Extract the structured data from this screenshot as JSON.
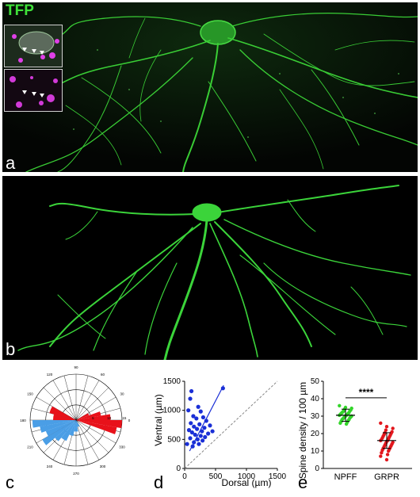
{
  "panel_a": {
    "label": "a",
    "channel": "TFP"
  },
  "panel_b": {
    "label": "b"
  },
  "panel_c": {
    "label": "c",
    "angle_labels": [
      "0",
      "30",
      "60",
      "90",
      "120",
      "150",
      "180",
      "210",
      "240",
      "270",
      "300",
      "330"
    ],
    "radial_labels": [
      "5",
      "10",
      "15"
    ],
    "colors": {
      "dorsal": "#e8111a",
      "ventral": "#4a9ee6"
    }
  },
  "panel_d": {
    "label": "d"
  },
  "panel_e": {
    "label": "e"
  },
  "colors": {
    "neuron": "#3fe13a",
    "marker": "#e040e8",
    "scatter_blue": "#1a2fd6",
    "npff": "#33d52a",
    "grpr": "#e2161c"
  },
  "chart_data": [
    {
      "type": "scatter",
      "panel": "d",
      "xlabel": "Dorsal (µm)",
      "ylabel": "Ventral (µm)",
      "xlim": [
        0,
        1500
      ],
      "ylim": [
        0,
        1500
      ],
      "xticks": [
        "0",
        "500",
        "1000",
        "1500"
      ],
      "yticks": [
        "0",
        "500",
        "1000",
        "1500"
      ],
      "points": [
        [
          110,
          1330
        ],
        [
          90,
          1200
        ],
        [
          220,
          1060
        ],
        [
          60,
          1000
        ],
        [
          260,
          980
        ],
        [
          620,
          1380
        ],
        [
          140,
          900
        ],
        [
          300,
          880
        ],
        [
          190,
          860
        ],
        [
          350,
          820
        ],
        [
          100,
          780
        ],
        [
          240,
          760
        ],
        [
          410,
          740
        ],
        [
          150,
          720
        ],
        [
          320,
          700
        ],
        [
          200,
          680
        ],
        [
          70,
          660
        ],
        [
          280,
          640
        ],
        [
          450,
          640
        ],
        [
          120,
          620
        ],
        [
          380,
          600
        ],
        [
          170,
          580
        ],
        [
          260,
          560
        ],
        [
          330,
          540
        ],
        [
          90,
          520
        ],
        [
          210,
          500
        ],
        [
          290,
          480
        ],
        [
          150,
          450
        ],
        [
          40,
          420
        ],
        [
          230,
          420
        ],
        [
          130,
          380
        ]
      ],
      "fit_line": [
        [
          80,
          300
        ],
        [
          630,
          1430
        ]
      ],
      "identity_line": [
        [
          0,
          0
        ],
        [
          1500,
          1500
        ]
      ]
    },
    {
      "type": "scatter",
      "panel": "e",
      "categories": [
        "NPFF",
        "GRPR"
      ],
      "ylabel": "Spine density / 100 µm",
      "ylim": [
        0,
        50
      ],
      "yticks": [
        "0",
        "10",
        "20",
        "30",
        "40",
        "50"
      ],
      "significance": "****",
      "series": [
        {
          "name": "NPFF",
          "mean": 30.5,
          "sd": 3.5,
          "values": [
            36,
            35,
            34.5,
            34,
            33.5,
            33,
            33,
            32.5,
            32,
            32,
            31.5,
            31.5,
            31,
            31,
            30.5,
            30.5,
            30,
            30,
            29.5,
            29.5,
            29,
            29,
            28.5,
            28,
            28,
            27.5,
            27,
            26.5,
            26,
            25.5
          ]
        },
        {
          "name": "GRPR",
          "mean": 16,
          "sd": 4.5,
          "values": [
            26,
            24,
            23,
            22,
            21,
            20.5,
            20,
            19.5,
            19,
            18.5,
            18,
            17.5,
            17,
            16.5,
            16,
            16,
            15.5,
            15,
            14.5,
            14,
            13.5,
            13,
            12.5,
            12,
            11.5,
            11,
            10.5,
            10,
            9,
            8,
            7,
            5
          ]
        }
      ]
    }
  ]
}
